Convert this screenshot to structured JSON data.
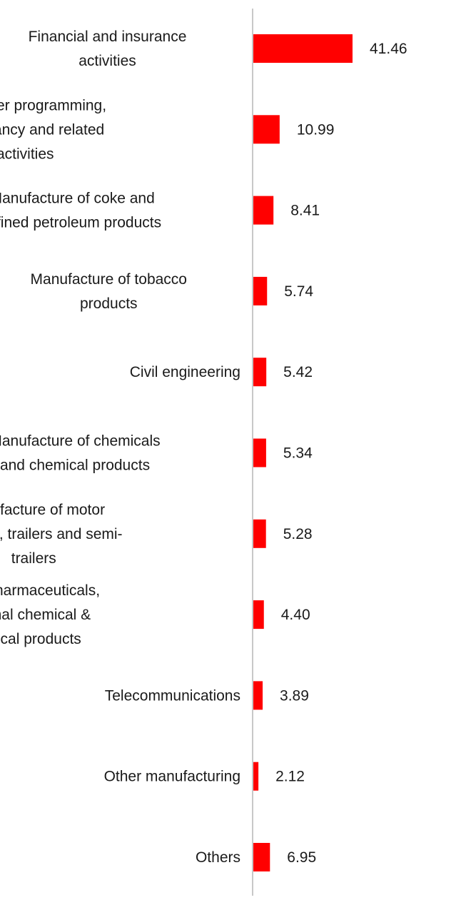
{
  "chart_data": {
    "type": "bar",
    "orientation": "horizontal",
    "bar_color": "#ff0000",
    "axis_color": "#c8c8c8",
    "categories": [
      [
        "Financial and insurance",
        "activities"
      ],
      [
        "Computer programming,",
        "consultancy and related",
        "activities"
      ],
      [
        "Manufacture of coke and",
        "refined petroleum products"
      ],
      [
        "Manufacture of tobacco",
        "products"
      ],
      [
        "Civil engineering"
      ],
      [
        "Manufacture of chemicals",
        "and chemical products"
      ],
      [
        "Manufacture of motor",
        "vehicles, trailers and semi-",
        "trailers"
      ],
      [
        "Mfg of pharmaceuticals,",
        "medicinal chemical &",
        "botanical products"
      ],
      [
        "Telecommunications"
      ],
      [
        "Other manufacturing"
      ],
      [
        "Others"
      ]
    ],
    "values": [
      41.46,
      10.99,
      8.41,
      5.74,
      5.42,
      5.34,
      5.28,
      4.4,
      3.89,
      2.12,
      6.95
    ],
    "value_labels": [
      "41.46",
      "10.99",
      "8.41",
      "5.74",
      "5.42",
      "5.34",
      "5.28",
      "4.40",
      "3.89",
      "2.12",
      "6.95"
    ],
    "title": "",
    "xlabel": "",
    "ylabel": "",
    "xlim": [
      0,
      41.46
    ],
    "grid": false,
    "legend": "none"
  }
}
